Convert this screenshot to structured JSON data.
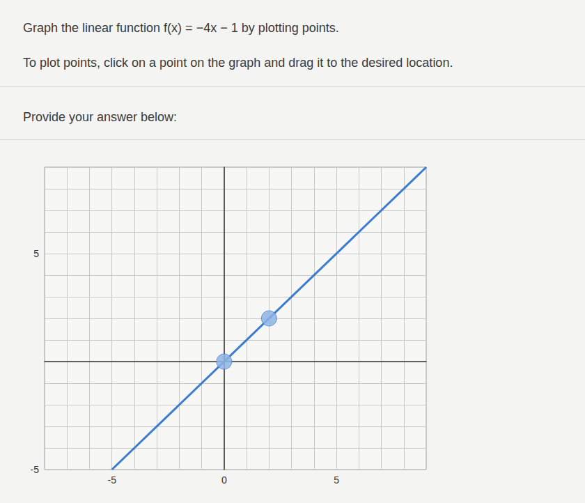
{
  "question": "Graph the linear function f(x) = −4x − 1 by plotting points.",
  "instruction": "To plot points, click on a point on the graph and drag it to the desired location.",
  "prompt": "Provide your answer below:",
  "chart_data": {
    "type": "line",
    "xlim": [
      -8,
      9
    ],
    "ylim": [
      -5,
      9
    ],
    "xticks": [
      -5,
      0,
      5
    ],
    "yticks": [
      -5,
      5
    ],
    "grid": true,
    "series": [
      {
        "type": "line",
        "color": "#3b7bd0",
        "x": [
          -5,
          9
        ],
        "values": [
          -5,
          9
        ]
      },
      {
        "type": "scatter",
        "color": "#8db4e4",
        "marker": "circle",
        "x": [
          0,
          2
        ],
        "values": [
          0,
          2
        ]
      }
    ]
  }
}
